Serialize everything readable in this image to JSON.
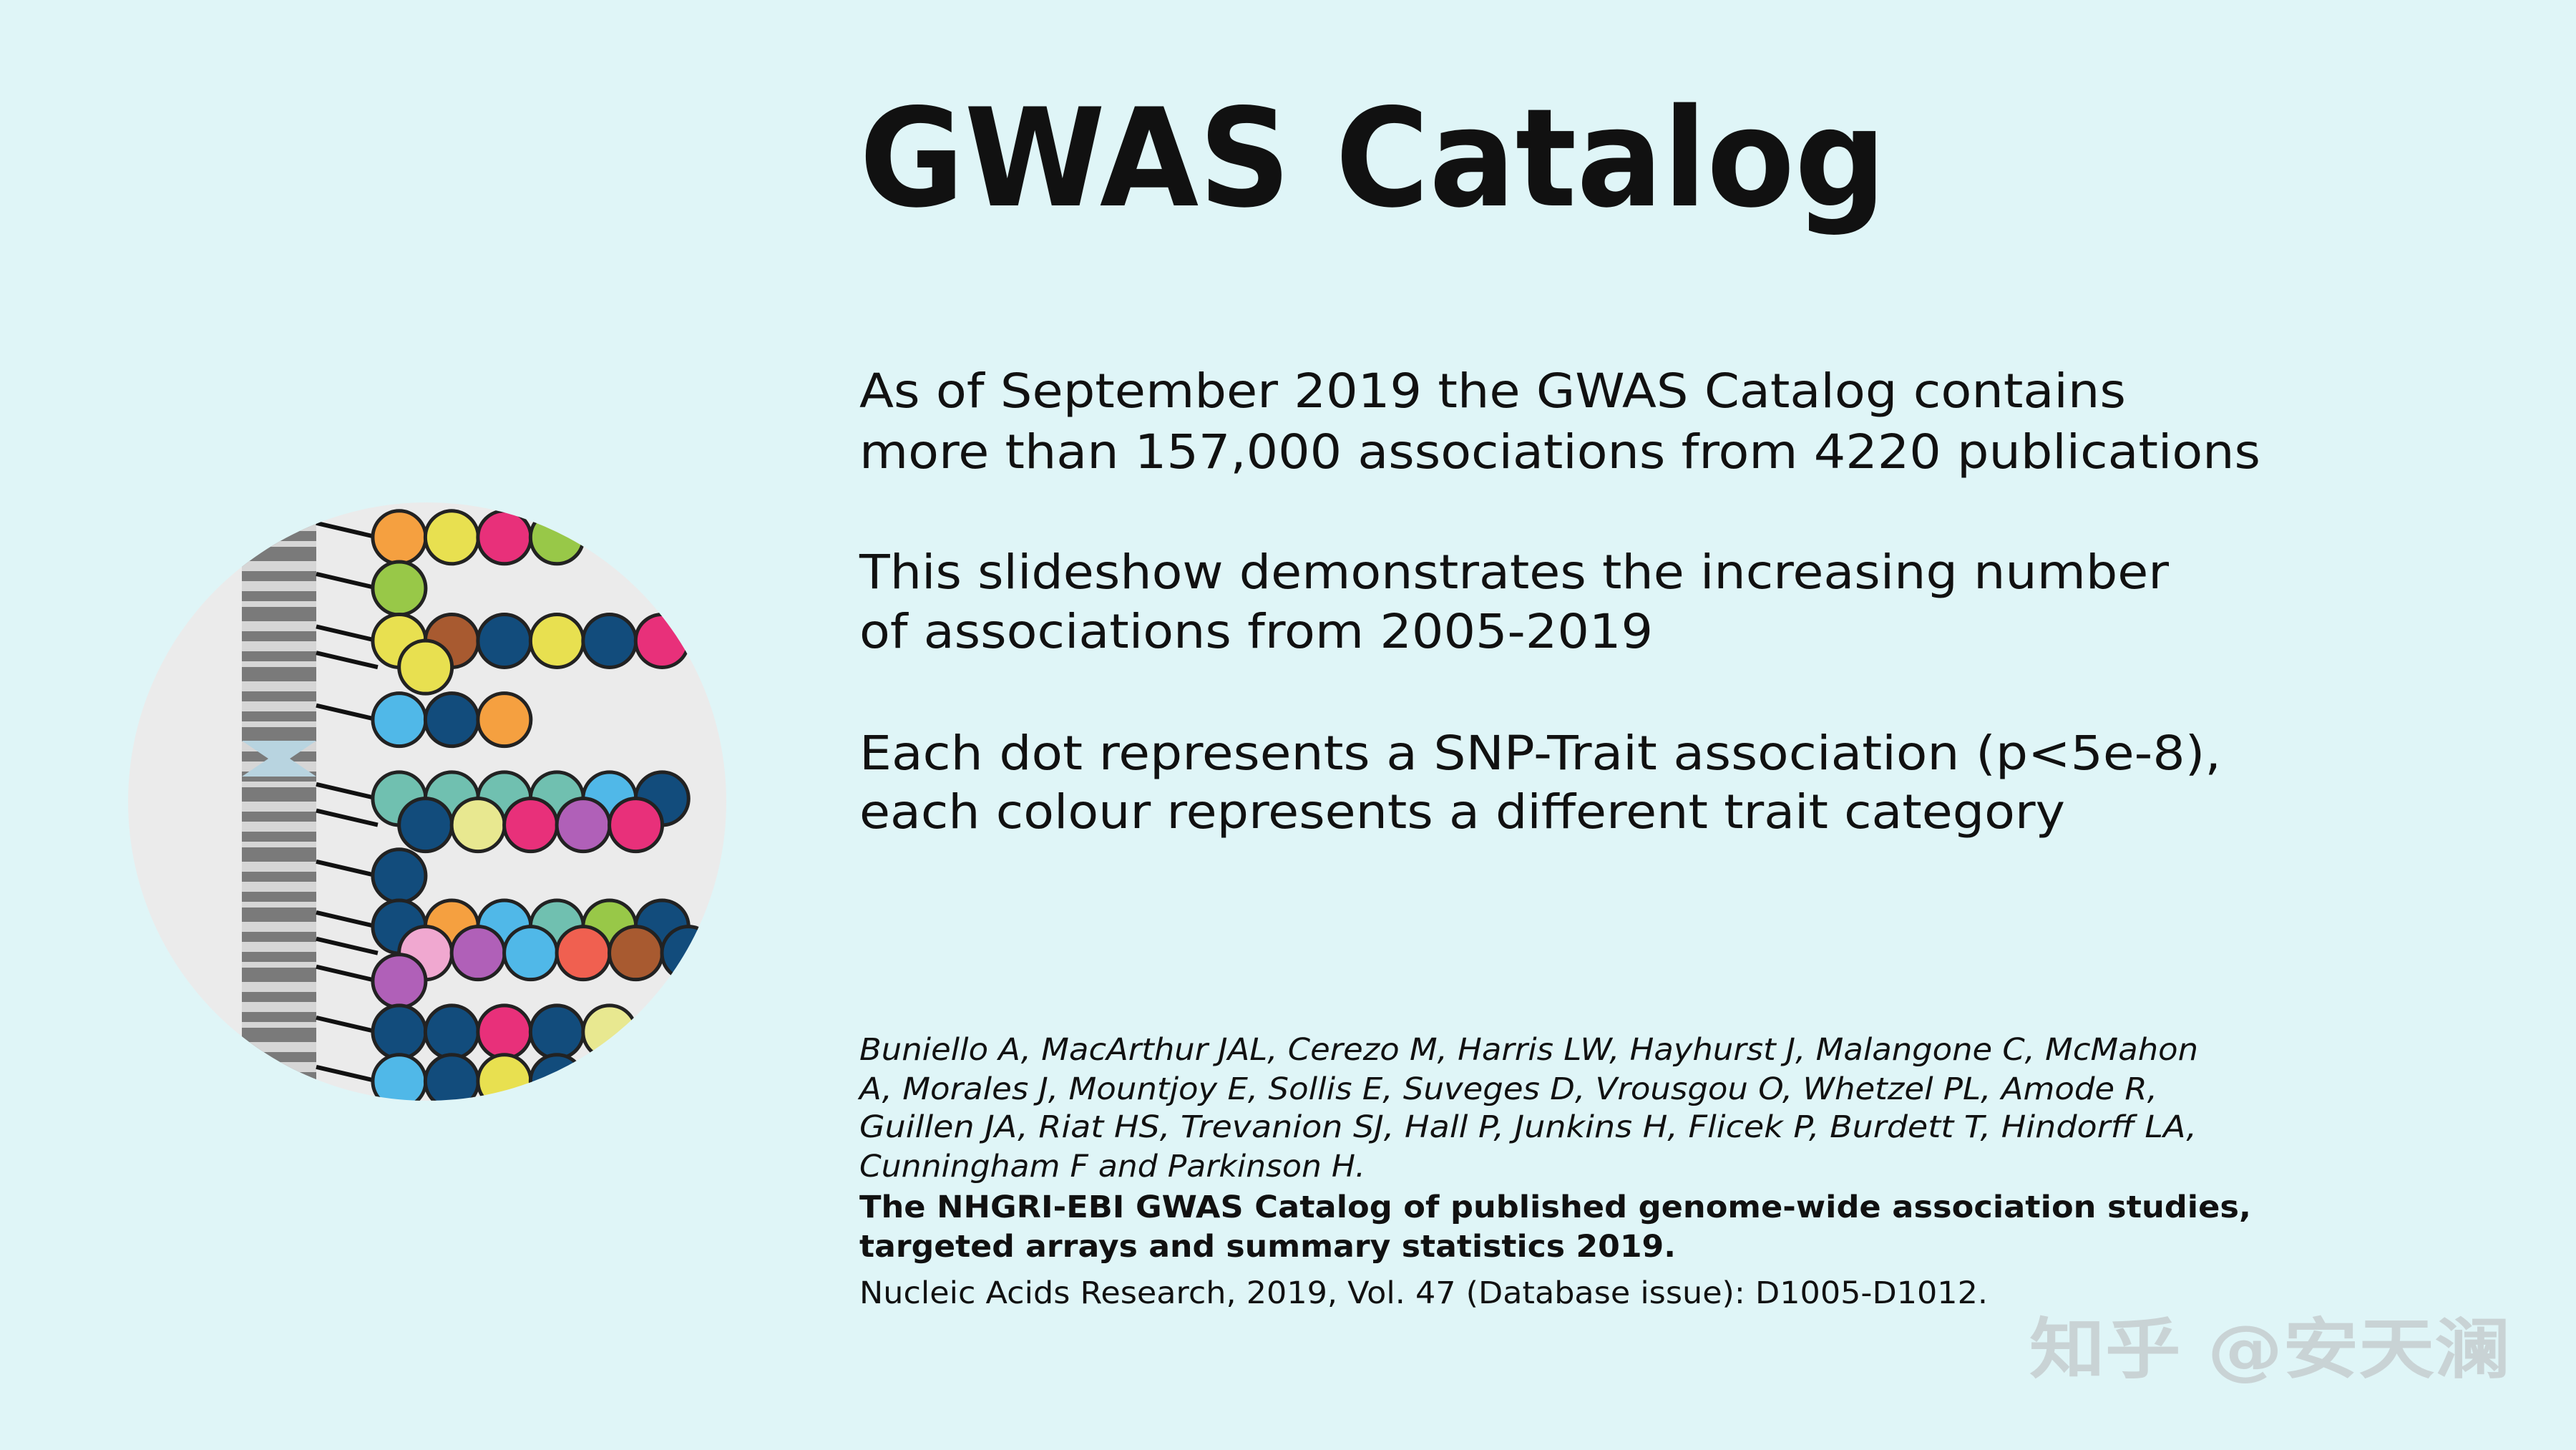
{
  "title": "GWAS Catalog",
  "paragraphs": [
    [
      "As of September 2019 the GWAS Catalog contains",
      "more than 157,000 associations from 4220 publications"
    ],
    [
      "This slideshow demonstrates the increasing number",
      "of associations from 2005-2019"
    ],
    [
      "Each dot represents a SNP-Trait association (p<5e-8),",
      "each colour represents a different trait category"
    ]
  ],
  "citation": {
    "authors": [
      "Buniello A, MacArthur JAL, Cerezo M, Harris LW, Hayhurst J, Malangone C, McMahon",
      "A, Morales J, Mountjoy E, Sollis E, Suveges D, Vrousgou O, Whetzel PL, Amode R,",
      "Guillen JA, Riat HS, Trevanion SJ, Hall P, Junkins H, Flicek P, Burdett T, Hindorff LA,",
      "Cunningham F and Parkinson H."
    ],
    "title": [
      "The NHGRI-EBI GWAS Catalog of published genome-wide association studies,",
      "targeted arrays and summary statistics 2019."
    ],
    "source": "Nucleic Acids Research, 2019, Vol. 47 (Database issue): D1005-D1012."
  },
  "watermark": "知乎 @安天澜"
}
